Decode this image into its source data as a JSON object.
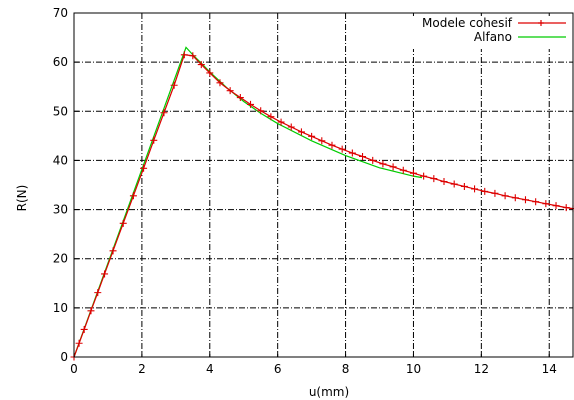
{
  "chart_data": {
    "type": "line",
    "title": "",
    "xlabel": "u(mm)",
    "ylabel": "R(N)",
    "xlim": [
      0,
      14.7
    ],
    "ylim": [
      0,
      70
    ],
    "grid": true,
    "legend_position": "top-right",
    "x_ticks": [
      "0",
      "2",
      "4",
      "6",
      "8",
      "10",
      "12",
      "14"
    ],
    "y_ticks": [
      "0",
      "10",
      "20",
      "30",
      "40",
      "50",
      "60",
      "70"
    ],
    "colors": {
      "series_1": "#dd0000",
      "series_2": "#00cc00",
      "grid": "#000000"
    },
    "series": [
      {
        "name": "Modele cohesif",
        "marker": "plus",
        "x": [
          0,
          0.15,
          0.3,
          0.5,
          0.7,
          0.9,
          1.15,
          1.45,
          1.75,
          2.05,
          2.35,
          2.65,
          2.95,
          3.25,
          3.5,
          3.75,
          4.0,
          4.3,
          4.6,
          4.9,
          5.2,
          5.5,
          5.8,
          6.1,
          6.4,
          6.7,
          7.0,
          7.3,
          7.6,
          7.9,
          8.2,
          8.5,
          8.8,
          9.1,
          9.4,
          9.7,
          10.0,
          10.3,
          10.6,
          10.9,
          11.2,
          11.5,
          11.8,
          12.1,
          12.4,
          12.7,
          13.0,
          13.3,
          13.6,
          13.9,
          14.2,
          14.5,
          14.7
        ],
        "y": [
          0,
          2.8,
          5.6,
          9.4,
          13.1,
          16.9,
          21.6,
          27.2,
          32.8,
          38.4,
          44.1,
          49.7,
          55.3,
          61.5,
          61.3,
          59.5,
          57.8,
          55.8,
          54.2,
          52.8,
          51.4,
          50.1,
          48.9,
          47.8,
          46.8,
          45.8,
          44.9,
          44.0,
          43.1,
          42.3,
          41.5,
          40.8,
          40.0,
          39.3,
          38.7,
          38.0,
          37.4,
          36.8,
          36.3,
          35.7,
          35.2,
          34.7,
          34.2,
          33.7,
          33.3,
          32.8,
          32.4,
          32.0,
          31.6,
          31.2,
          30.8,
          30.4,
          30.2
        ]
      },
      {
        "name": "Alfano",
        "marker": "none",
        "x": [
          0,
          3.3,
          3.5,
          3.75,
          4.0,
          4.5,
          5.0,
          5.5,
          6.0,
          7.0,
          8.0,
          9.0,
          10.0,
          10.25
        ],
        "y": [
          0,
          63.0,
          61.5,
          59.8,
          58.0,
          54.8,
          52.0,
          49.6,
          47.5,
          44.0,
          41.0,
          38.5,
          36.8,
          36.5
        ]
      }
    ]
  }
}
